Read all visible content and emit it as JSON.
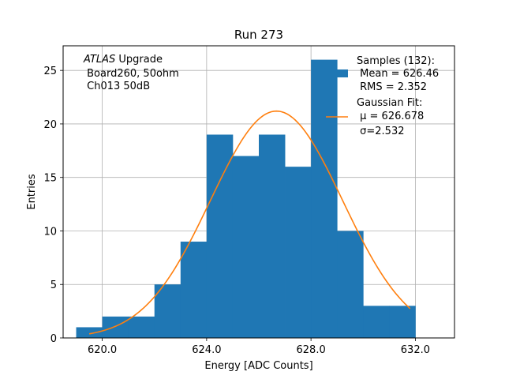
{
  "chart_data": {
    "type": "bar",
    "title": "Run 273",
    "xlabel": "Energy [ADC Counts]",
    "ylabel": "Entries",
    "xlim": [
      618.5,
      633.5
    ],
    "ylim": [
      0,
      27.3
    ],
    "grid": true,
    "legend_position": "top-right",
    "x_ticks": [
      620,
      624,
      628,
      632
    ],
    "x_tick_labels": [
      "620.0",
      "624.0",
      "628.0",
      "632.0"
    ],
    "y_ticks": [
      0,
      5,
      10,
      15,
      20,
      25
    ],
    "y_tick_labels": [
      "0",
      "5",
      "10",
      "15",
      "20",
      "25"
    ],
    "histogram": {
      "name": "Samples (132):",
      "color": "#1f77b4",
      "bin_edges": [
        619,
        620,
        621,
        622,
        623,
        624,
        625,
        626,
        627,
        628,
        629,
        630,
        631,
        632
      ],
      "counts": [
        1,
        2,
        2,
        5,
        9,
        19,
        17,
        19,
        16,
        26,
        10,
        3,
        3
      ]
    },
    "fit": {
      "name": "Gaussian Fit:",
      "color": "#ff7f0e",
      "mu": 626.678,
      "sigma": 2.532,
      "x_range": [
        619.5,
        631.8
      ],
      "amplitude": 21.2
    },
    "annotation_lines": [
      "ATLAS Upgrade",
      " Board260, 50ohm",
      " Ch013 50dB"
    ],
    "annotation_italic_word": "ATLAS",
    "legend": {
      "samples_lines": [
        "Samples (132):",
        " Mean = 626.46",
        " RMS = 2.352"
      ],
      "fit_lines": [
        "Gaussian Fit:",
        " μ = 626.678",
        " σ=2.532"
      ]
    }
  }
}
